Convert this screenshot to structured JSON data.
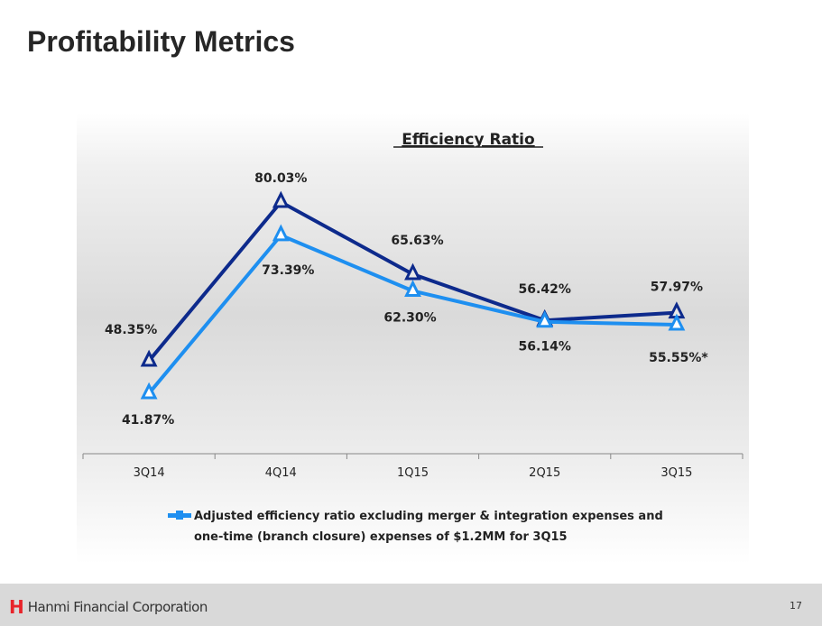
{
  "page_title": "Profitability Metrics",
  "footer": {
    "company": "Hanmi Financial Corporation",
    "page_number": "17"
  },
  "chart_data": {
    "type": "line",
    "title": "Efficiency Ratio",
    "categories": [
      "3Q14",
      "4Q14",
      "1Q15",
      "2Q15",
      "3Q15"
    ],
    "ylim": [
      30,
      90
    ],
    "grid": false,
    "legend_position": "bottom",
    "series": [
      {
        "values": [
          48.35,
          80.03,
          65.63,
          56.42,
          57.97
        ],
        "labels": [
          "48.35%",
          "80.03%",
          "65.63%",
          "56.42%",
          "57.97%"
        ],
        "color": "#0d2a8c"
      },
      {
        "name": "Adjusted efficiency ratio excluding merger & integration expenses and one-time (branch closure) expenses of $1.2MM for 3Q15",
        "name_lines": [
          "Adjusted efficiency ratio excluding merger & integration expenses and",
          "one-time (branch closure) expenses of $1.2MM for 3Q15"
        ],
        "values": [
          41.87,
          73.39,
          62.3,
          56.14,
          55.55
        ],
        "labels": [
          "41.87%",
          "73.39%",
          "62.30%",
          "56.14%",
          "55.55%*"
        ],
        "color": "#1e8ff0"
      }
    ]
  }
}
